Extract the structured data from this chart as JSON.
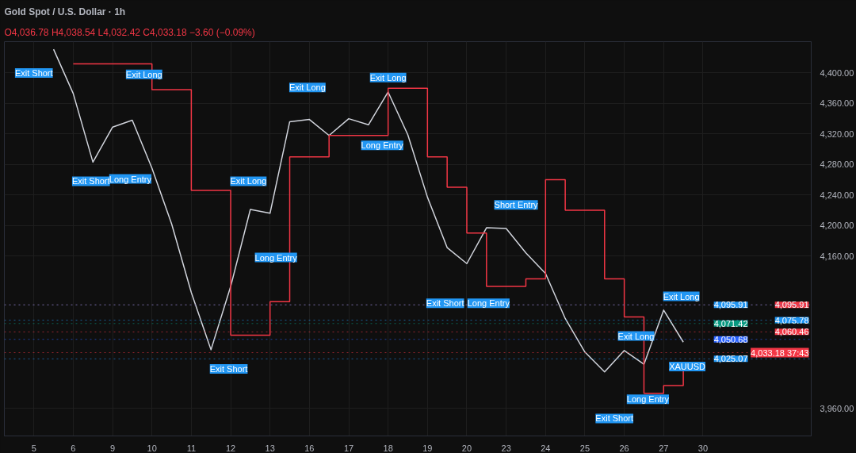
{
  "chart_data": {
    "type": "line",
    "title": "Gold Spot / U.S. Dollar · 1h",
    "subtitle": "O4,036.78 H4,038.54 L4,032.42 C4,033.18 −3.60 (−0.09%)",
    "categories": [
      null,
      "5",
      null,
      "6",
      null,
      "9",
      null,
      "10",
      null,
      "11",
      null,
      "12",
      null,
      "13",
      null,
      "16",
      null,
      "17",
      null,
      "18",
      null,
      "19",
      null,
      "20",
      null,
      "23",
      null,
      "24",
      null,
      "25",
      null,
      "26",
      null,
      "27",
      null,
      "30"
    ],
    "ylim": [
      3924,
      4441
    ],
    "yticks": [
      {
        "value": 3960,
        "label": "3,960.00"
      },
      {
        "value": 4160,
        "label": "4,160.00"
      },
      {
        "value": 4200,
        "label": "4,200.00"
      },
      {
        "value": 4240,
        "label": "4,240.00"
      },
      {
        "value": 4280,
        "label": "4,280.00"
      },
      {
        "value": 4320,
        "label": "4,320.00"
      },
      {
        "value": 4360,
        "label": "4,360.00"
      },
      {
        "value": 4400,
        "label": "4,400.00"
      }
    ],
    "grid": true,
    "series": [
      {
        "color": "#d1d4dc",
        "values": [
          null,
          null,
          4431,
          4373,
          4283,
          4329,
          4338,
          4275,
          4202,
          4112,
          4037,
          4120,
          4221,
          4216,
          4336,
          4339,
          4318,
          4340,
          4332,
          4375,
          4319,
          4237,
          4171,
          4150,
          4197,
          4196,
          4164,
          4137,
          4078,
          4034,
          4008,
          4036,
          4018,
          4089,
          4047,
          null
        ]
      },
      {
        "type": "step",
        "color": "#f23645",
        "values": [
          null,
          null,
          null,
          4412,
          4412,
          4412,
          4412,
          4378,
          4378,
          4246,
          4246,
          4056,
          4056,
          4100,
          4290,
          4290,
          4318,
          4318,
          4318,
          4380,
          4380,
          4290,
          4250,
          4190,
          4120,
          4120,
          4130,
          4260,
          4220,
          4220,
          4130,
          4080,
          3980,
          3990,
          4010,
          null
        ]
      }
    ],
    "ref_lines": [
      {
        "axis": "y",
        "value": 4095.91,
        "label": "4,095.91",
        "color": "#f23645"
      },
      {
        "axis": "y",
        "value": 4095.91,
        "label": "4,095.91",
        "color": "#2196f3"
      },
      {
        "axis": "y",
        "value": 4075.78,
        "label": "4,075.78",
        "color": "#2196f3"
      },
      {
        "axis": "y",
        "value": 4071.42,
        "label": "4,071.42",
        "color": "#089981"
      },
      {
        "axis": "y",
        "value": 4060.46,
        "label": "4,060.46",
        "color": "#f23645"
      },
      {
        "axis": "y",
        "value": 4050.68,
        "label": "4,050.68",
        "color": "#2962ff"
      },
      {
        "axis": "y",
        "value": 4033.18,
        "label": "4,033.18 37:43",
        "color": "#f23645"
      },
      {
        "axis": "y",
        "value": 4025.07,
        "label": "4,025.07",
        "color": "#2196f3"
      }
    ],
    "line_style": "solid",
    "annotations": [
      "Exit Short",
      "Exit Long",
      "Exit Short",
      "Long Entry",
      "Exit Long",
      "Exit Long",
      "Long Entry",
      "Exit Short",
      "Exit Long",
      "Long Entry",
      "Short Entry",
      "Exit Short",
      "Long Entry",
      "Exit Long",
      "Long Entry",
      "Exit Short",
      "Exit Long",
      "XAUUSD"
    ]
  }
}
